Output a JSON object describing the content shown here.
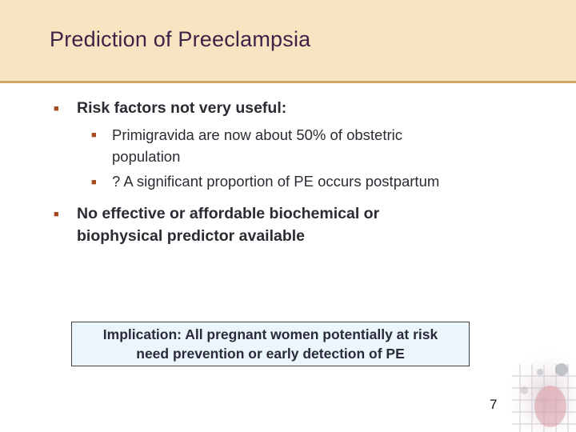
{
  "slide": {
    "title": "Prediction of Preeclampsia",
    "bullets": [
      {
        "text": "Risk factors not very useful:",
        "sub": [
          {
            "line1": "Primigravida are now about 50% of obstetric",
            "line2": "population"
          },
          {
            "line1": "? A significant proportion of  PE occurs postpartum"
          }
        ]
      },
      {
        "line1": "No effective or affordable biochemical or",
        "line2": "biophysical predictor  available"
      }
    ],
    "callout": {
      "line1": "Implication: All pregnant women potentially at risk",
      "line2": "need prevention or early detection of PE"
    },
    "page_number": "7"
  },
  "colors": {
    "header_bg": "#f8e4c1",
    "header_rule": "#d2a76a",
    "title": "#3b2348",
    "bullet": "#a64a1f",
    "callout_bg": "#eaf6fb"
  },
  "icons": {
    "bullet_marker": "square-bullet-icon"
  }
}
